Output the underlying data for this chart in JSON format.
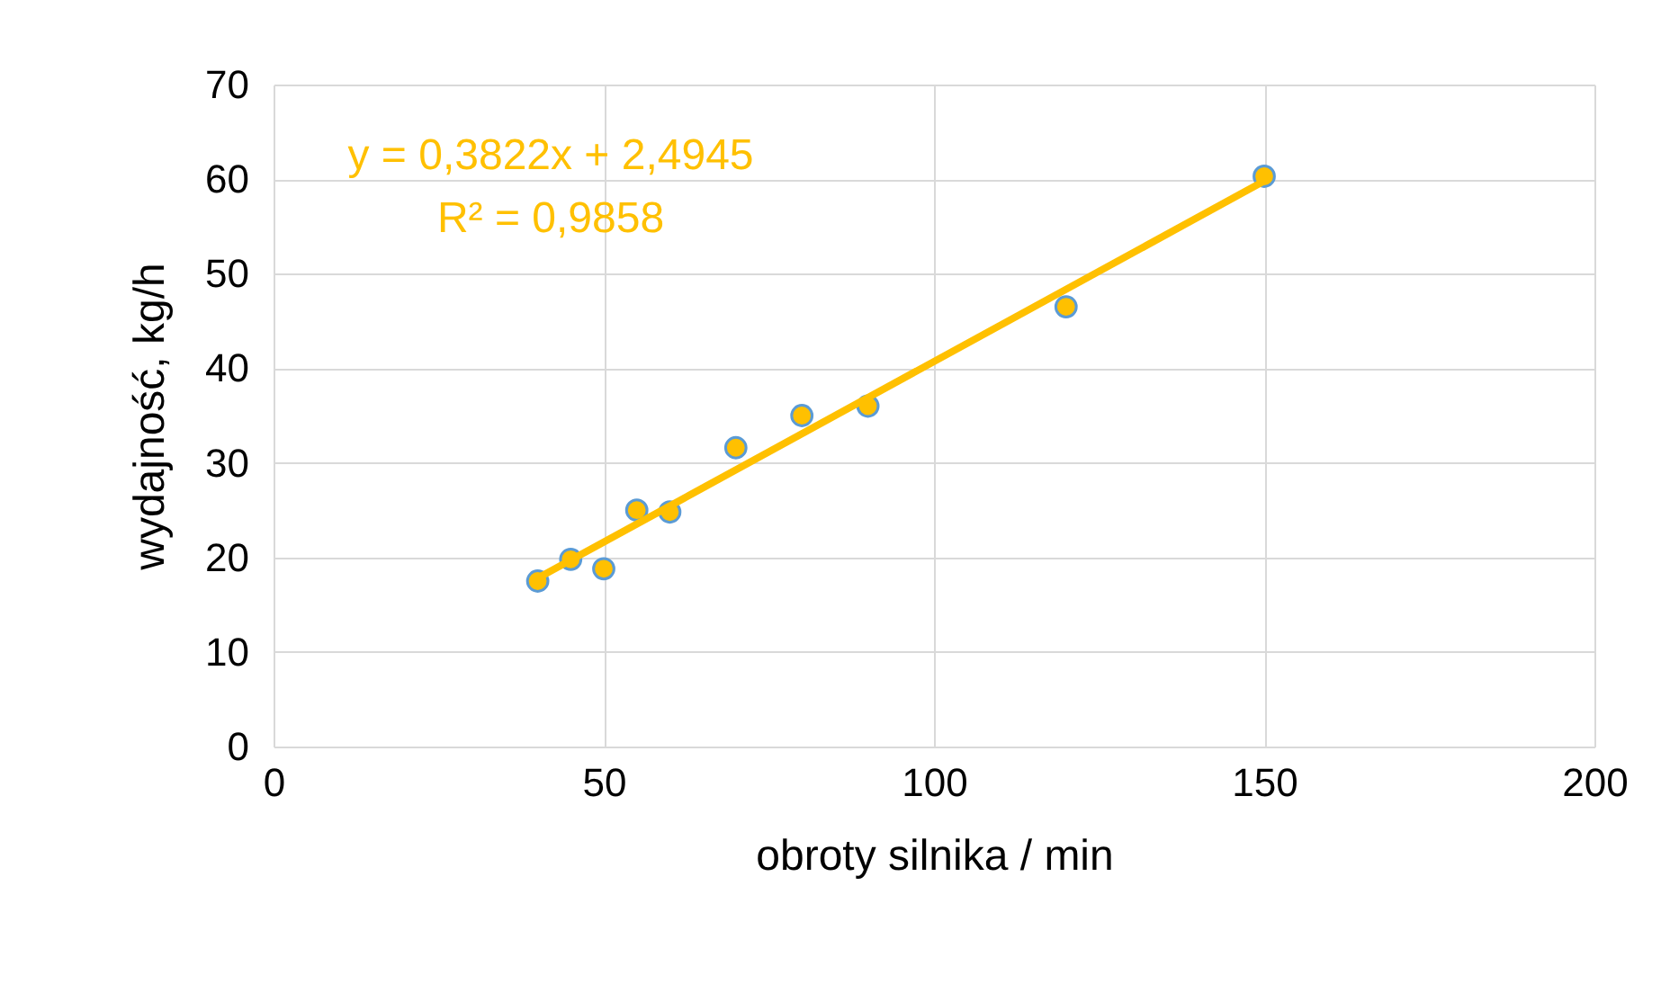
{
  "chart_data": {
    "type": "scatter",
    "xlabel": "obroty silnika / min",
    "ylabel": "wydajność, kg/h",
    "x": [
      40,
      45,
      50,
      55,
      60,
      70,
      80,
      90,
      120,
      150
    ],
    "series": [
      {
        "color": "#ffc000",
        "marker": "circle",
        "values": [
          17.5,
          19.8,
          18.8,
          25,
          24.8,
          31.6,
          35,
          36,
          46.5,
          60.3
        ]
      },
      {
        "type": "line",
        "marker": "none",
        "color": "#ffc000",
        "x": [
          40,
          150
        ],
        "values": [
          17.8,
          59.8
        ]
      }
    ],
    "annotations": [
      "y = 0,3822x + 2,4945",
      "R² = 0,9858"
    ],
    "xlim": [
      0,
      200
    ],
    "xticks": [
      0,
      50,
      100,
      150,
      200
    ],
    "ylim": [
      0,
      70
    ],
    "yticks": [
      0,
      10,
      20,
      30,
      40,
      50,
      60,
      70
    ],
    "grid": true
  }
}
